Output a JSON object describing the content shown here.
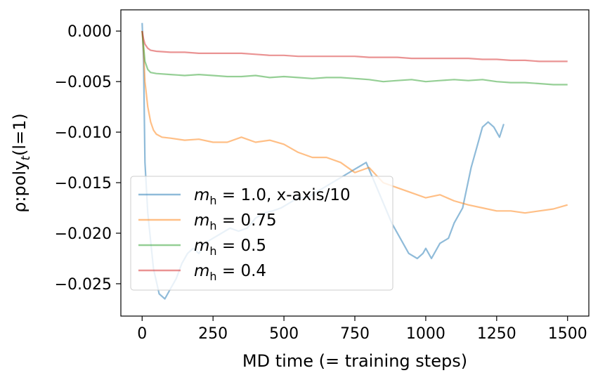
{
  "chart_data": {
    "type": "line",
    "title": "",
    "xlabel": "MD time (= training steps)",
    "ylabel_parts": {
      "base": "ρ:poly",
      "sub": "t",
      "tail": "(l=1)"
    },
    "xlim": [
      -75,
      1575
    ],
    "ylim": [
      -0.0282,
      0.0021
    ],
    "xticks": [
      0,
      250,
      500,
      750,
      1000,
      1250,
      1500
    ],
    "xtick_labels": [
      "0",
      "250",
      "500",
      "750",
      "1000",
      "1250",
      "1500"
    ],
    "yticks": [
      0.0,
      -0.005,
      -0.01,
      -0.015,
      -0.02,
      -0.025
    ],
    "ytick_labels": [
      "0.000",
      "−0.005",
      "−0.010",
      "−0.015",
      "−0.020",
      "−0.025"
    ],
    "grid": false,
    "legend_position": "lower-left",
    "series": [
      {
        "name_prefix": "m",
        "name_sub": "h",
        "name_suffix": " = 1.0, x-axis/10",
        "color": "#1f77b4",
        "x": [
          0,
          5,
          10,
          20,
          40,
          60,
          80,
          100,
          120,
          140,
          160,
          180,
          200,
          220,
          250,
          280,
          310,
          340,
          370,
          400,
          430,
          460,
          490,
          520,
          550,
          580,
          610,
          640,
          670,
          700,
          730,
          760,
          790,
          820,
          850,
          880,
          910,
          940,
          970,
          990,
          1000,
          1020,
          1050,
          1080,
          1100,
          1130,
          1160,
          1180,
          1200,
          1220,
          1240,
          1260,
          1275
        ],
        "y": [
          0.0008,
          -0.003,
          -0.013,
          -0.018,
          -0.0235,
          -0.026,
          -0.0265,
          -0.0255,
          -0.0245,
          -0.023,
          -0.022,
          -0.0215,
          -0.022,
          -0.021,
          -0.0205,
          -0.02,
          -0.0195,
          -0.0198,
          -0.0195,
          -0.0185,
          -0.018,
          -0.0178,
          -0.0175,
          -0.017,
          -0.0165,
          -0.0165,
          -0.016,
          -0.0155,
          -0.015,
          -0.0145,
          -0.014,
          -0.0135,
          -0.013,
          -0.015,
          -0.017,
          -0.019,
          -0.0205,
          -0.022,
          -0.0225,
          -0.022,
          -0.0215,
          -0.0225,
          -0.021,
          -0.0205,
          -0.019,
          -0.0175,
          -0.0135,
          -0.0115,
          -0.0095,
          -0.009,
          -0.0095,
          -0.0105,
          -0.0092
        ]
      },
      {
        "name_prefix": "m",
        "name_sub": "h",
        "name_suffix": " = 0.75",
        "color": "#ff7f0e",
        "x": [
          0,
          5,
          10,
          20,
          30,
          40,
          50,
          70,
          100,
          150,
          200,
          250,
          300,
          350,
          400,
          450,
          500,
          550,
          600,
          650,
          700,
          750,
          800,
          850,
          900,
          950,
          1000,
          1050,
          1100,
          1150,
          1200,
          1250,
          1300,
          1350,
          1400,
          1450,
          1500
        ],
        "y": [
          0.0,
          -0.002,
          -0.005,
          -0.0075,
          -0.009,
          -0.0098,
          -0.0102,
          -0.0105,
          -0.0106,
          -0.0108,
          -0.0107,
          -0.011,
          -0.011,
          -0.0105,
          -0.011,
          -0.0108,
          -0.0112,
          -0.012,
          -0.0125,
          -0.0125,
          -0.013,
          -0.014,
          -0.0135,
          -0.015,
          -0.0155,
          -0.016,
          -0.0165,
          -0.0162,
          -0.0168,
          -0.0172,
          -0.0175,
          -0.0178,
          -0.0178,
          -0.018,
          -0.0178,
          -0.0176,
          -0.0172
        ]
      },
      {
        "name_prefix": "m",
        "name_sub": "h",
        "name_suffix": " = 0.5",
        "color": "#2ca02c",
        "x": [
          0,
          5,
          10,
          20,
          30,
          50,
          100,
          150,
          200,
          250,
          300,
          350,
          400,
          450,
          500,
          550,
          600,
          650,
          700,
          750,
          800,
          850,
          900,
          950,
          1000,
          1050,
          1100,
          1150,
          1200,
          1250,
          1300,
          1350,
          1400,
          1450,
          1500
        ],
        "y": [
          0.0,
          -0.0015,
          -0.003,
          -0.0038,
          -0.0041,
          -0.0042,
          -0.0043,
          -0.0044,
          -0.0043,
          -0.0044,
          -0.0045,
          -0.0045,
          -0.0044,
          -0.0046,
          -0.0045,
          -0.0046,
          -0.0047,
          -0.0046,
          -0.0046,
          -0.0047,
          -0.0048,
          -0.005,
          -0.0049,
          -0.0048,
          -0.005,
          -0.0049,
          -0.0048,
          -0.0049,
          -0.0048,
          -0.005,
          -0.0051,
          -0.0051,
          -0.0052,
          -0.0053,
          -0.0053
        ]
      },
      {
        "name_prefix": "m",
        "name_sub": "h",
        "name_suffix": " = 0.4",
        "color": "#d62728",
        "x": [
          0,
          5,
          10,
          20,
          30,
          50,
          100,
          150,
          200,
          250,
          300,
          350,
          400,
          450,
          500,
          550,
          600,
          650,
          700,
          750,
          800,
          850,
          900,
          950,
          1000,
          1050,
          1100,
          1150,
          1200,
          1250,
          1300,
          1350,
          1400,
          1450,
          1500
        ],
        "y": [
          0.0,
          -0.0008,
          -0.0013,
          -0.0017,
          -0.0019,
          -0.002,
          -0.0021,
          -0.0021,
          -0.0022,
          -0.0022,
          -0.0022,
          -0.0022,
          -0.0023,
          -0.0024,
          -0.0024,
          -0.0025,
          -0.0025,
          -0.0025,
          -0.0025,
          -0.0025,
          -0.0026,
          -0.0026,
          -0.0026,
          -0.0027,
          -0.0027,
          -0.0027,
          -0.0027,
          -0.0027,
          -0.0028,
          -0.0028,
          -0.0029,
          -0.0029,
          -0.003,
          -0.003,
          -0.003
        ]
      }
    ]
  }
}
